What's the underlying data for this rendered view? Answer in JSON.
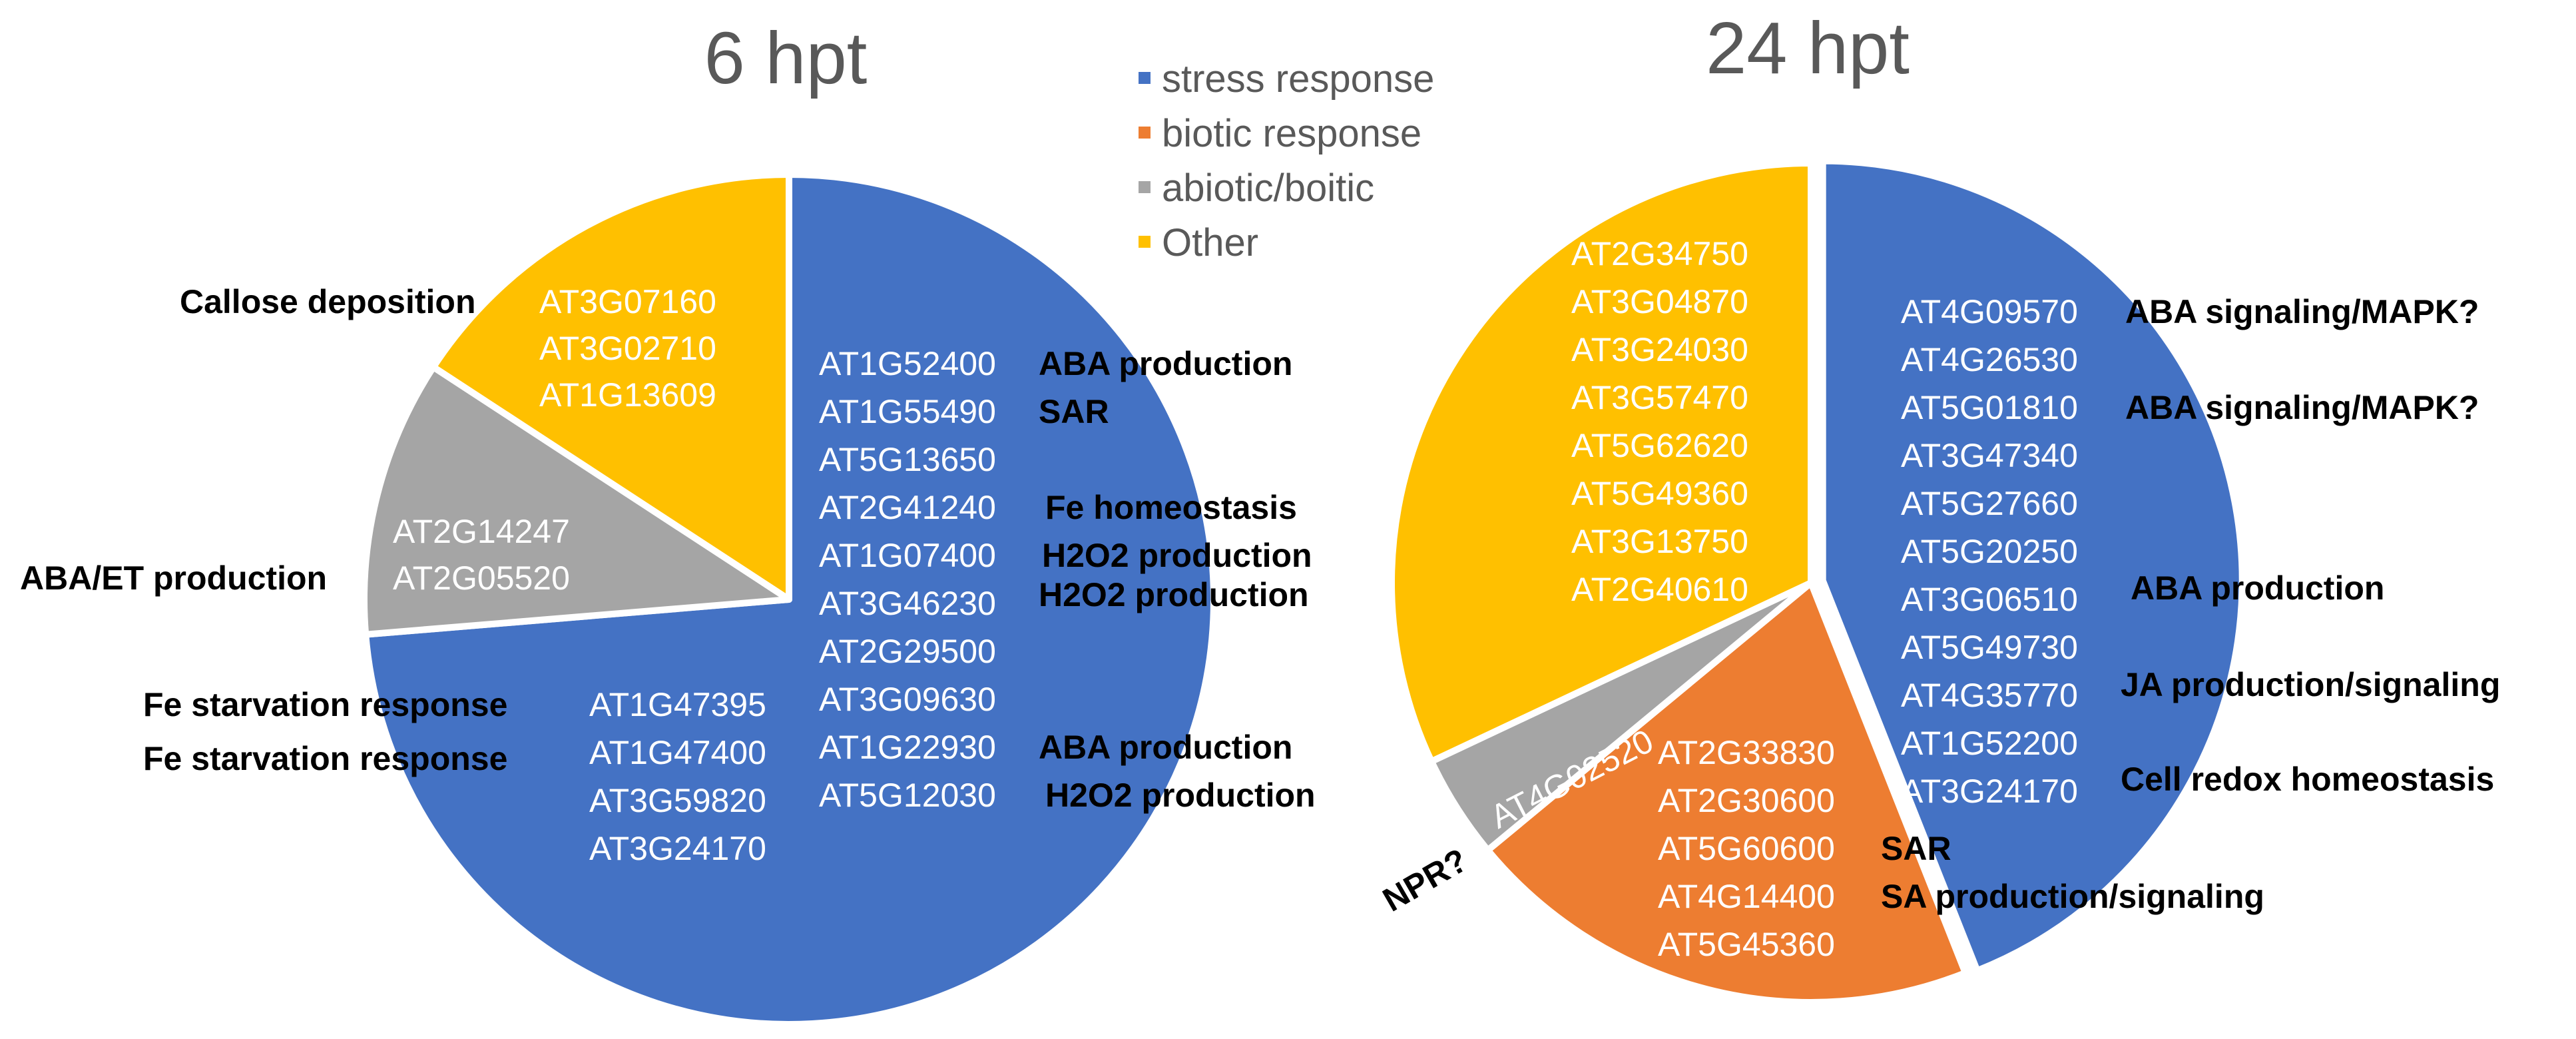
{
  "chart_data": [
    {
      "type": "pie",
      "title": "6 hpt",
      "slices": [
        {
          "category": "stress response",
          "value": 14
        },
        {
          "category": "abiotic/boitic",
          "value": 2
        },
        {
          "category": "Other",
          "value": 3
        }
      ],
      "genes": {
        "stress response": [
          "AT1G52400",
          "AT1G55490",
          "AT5G13650",
          "AT2G41240",
          "AT1G07400",
          "AT3G46230",
          "AT2G29500",
          "AT3G09630",
          "AT1G22930",
          "AT5G12030",
          "AT1G47395",
          "AT1G47400",
          "AT3G59820",
          "AT3G24170"
        ],
        "abiotic/boitic": [
          "AT2G14247",
          "AT2G05520"
        ],
        "Other": [
          "AT3G07160",
          "AT3G02710",
          "AT1G13609"
        ]
      },
      "annotations": [
        "Callose deposition",
        "ABA production",
        "SAR",
        "Fe homeostasis",
        "H2O2 production",
        "H2O2 production",
        "ABA production",
        "H2O2 production",
        "ABA/ET production",
        "Fe starvation response",
        "Fe starvation response"
      ]
    },
    {
      "type": "pie",
      "title": "24 hpt",
      "slices": [
        {
          "category": "stress response",
          "value": 11
        },
        {
          "category": "biotic response",
          "value": 5
        },
        {
          "category": "abiotic/boitic",
          "value": 1
        },
        {
          "category": "Other",
          "value": 8
        }
      ],
      "genes": {
        "stress response": [
          "AT4G09570",
          "AT4G26530",
          "AT5G01810",
          "AT3G47340",
          "AT5G27660",
          "AT5G20250",
          "AT3G06510",
          "AT5G49730",
          "AT4G35770",
          "AT1G52200",
          "AT3G24170"
        ],
        "biotic response": [
          "AT2G33830",
          "AT2G30600",
          "AT5G60600",
          "AT4G14400",
          "AT5G45360"
        ],
        "abiotic/boitic": [
          "AT4G02520"
        ],
        "Other": [
          "AT2G34750",
          "AT3G04870",
          "AT3G24030",
          "AT3G57470",
          "AT5G62620",
          "AT5G49360",
          "AT3G13750",
          "AT2G40610"
        ]
      },
      "annotations": [
        "ABA signaling/MAPK?",
        "ABA signaling/MAPK?",
        "ABA production",
        "JA production/signaling",
        "Cell redox homeostasis",
        "SAR",
        "SA production/signaling",
        "NPR?"
      ]
    }
  ],
  "legend": [
    {
      "label": "stress response",
      "color": "#4472C4"
    },
    {
      "label": "biotic response",
      "color": "#ED7D31"
    },
    {
      "label": "abiotic/boitic",
      "color": "#A5A5A5"
    },
    {
      "label": "Other",
      "color": "#FFC000"
    }
  ],
  "colors": {
    "stress response": "#4472C4",
    "biotic response": "#ED7D31",
    "abiotic/boitic": "#A5A5A5",
    "Other": "#FFC000"
  }
}
